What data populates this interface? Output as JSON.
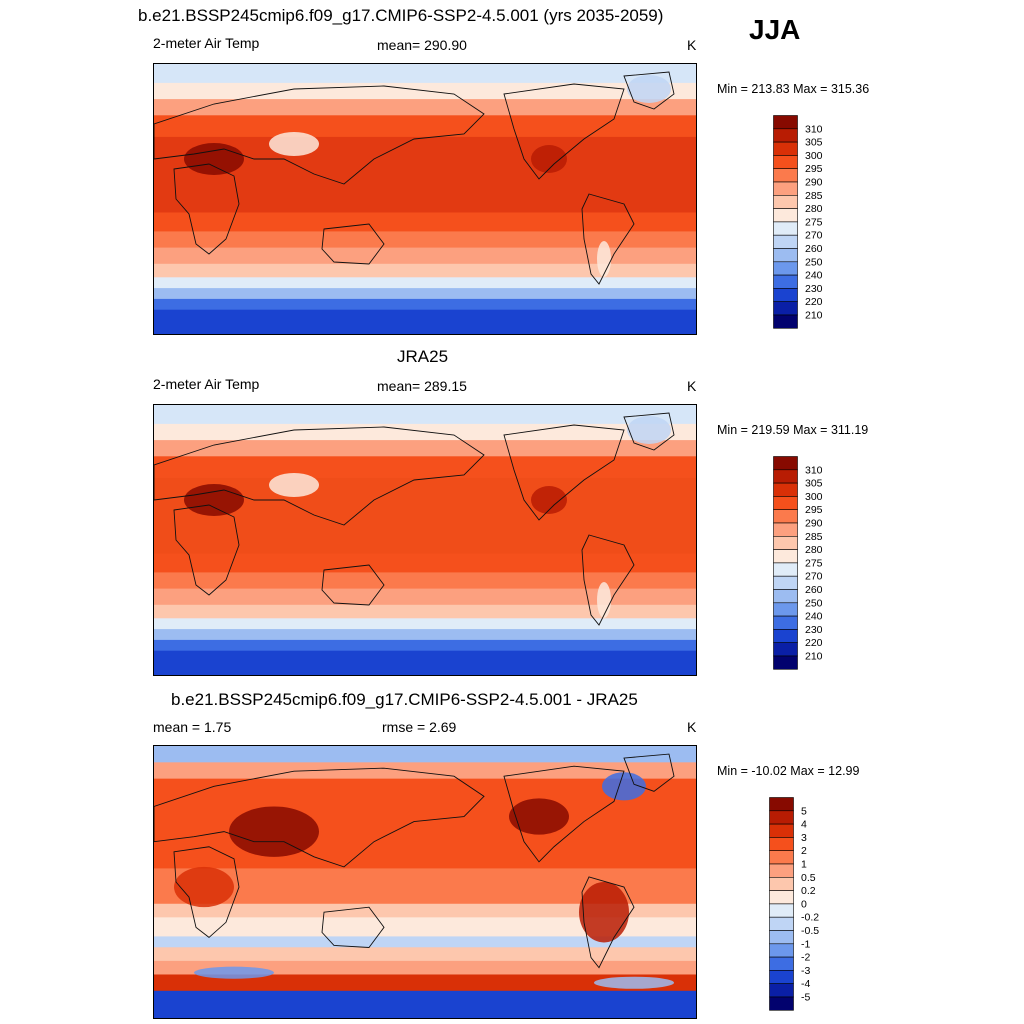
{
  "season": "JJA",
  "panels": [
    {
      "title": "b.e21.BSSP245cmip6.f09_g17.CMIP6-SSP2-4.5.001 (yrs 2035-2059)",
      "left": "2-meter Air Temp",
      "center": "mean= 290.90",
      "units": "K",
      "minmax": "Min = 213.83 Max = 315.36",
      "kind": "temp",
      "tropics_color": "#e23a12",
      "colorbar": {
        "labels": [
          "310",
          "305",
          "300",
          "295",
          "290",
          "285",
          "280",
          "275",
          "270",
          "260",
          "250",
          "240",
          "230",
          "220",
          "210"
        ],
        "colors": [
          "#870a00",
          "#b81c03",
          "#d93007",
          "#f5501c",
          "#fb7a4c",
          "#fca07f",
          "#fdc7ad",
          "#fde9dc",
          "#e0ecf8",
          "#bfd5f5",
          "#9cbcf1",
          "#6c98ec",
          "#3d6de3",
          "#1a43d0",
          "#0a1fa6",
          "#02026e"
        ]
      }
    },
    {
      "title": "JRA25",
      "left": "2-meter Air Temp",
      "center": "mean= 289.15",
      "units": "K",
      "minmax": "Min = 219.59 Max = 311.19",
      "kind": "temp",
      "tropics_color": "#f04d19",
      "colorbar": {
        "labels": [
          "310",
          "305",
          "300",
          "295",
          "290",
          "285",
          "280",
          "275",
          "270",
          "260",
          "250",
          "240",
          "230",
          "220",
          "210"
        ],
        "colors": [
          "#870a00",
          "#b81c03",
          "#d93007",
          "#f5501c",
          "#fb7a4c",
          "#fca07f",
          "#fdc7ad",
          "#fde9dc",
          "#e0ecf8",
          "#bfd5f5",
          "#9cbcf1",
          "#6c98ec",
          "#3d6de3",
          "#1a43d0",
          "#0a1fa6",
          "#02026e"
        ]
      }
    },
    {
      "title": "b.e21.BSSP245cmip6.f09_g17.CMIP6-SSP2-4.5.001 - JRA25",
      "left": "mean =   1.75",
      "center": "rmse =   2.69",
      "units": "K",
      "minmax": "Min = -10.02 Max =  12.99",
      "kind": "diff",
      "tropics_color": "#f46a3a",
      "colorbar": {
        "labels": [
          "5",
          "4",
          "3",
          "2",
          "1",
          "0.5",
          "0.2",
          "0",
          "-0.2",
          "-0.5",
          "-1",
          "-2",
          "-3",
          "-4",
          "-5"
        ],
        "colors": [
          "#870a00",
          "#b81c03",
          "#d93007",
          "#f5501c",
          "#fb7a4c",
          "#fca07f",
          "#fdc7ad",
          "#fde9dc",
          "#e0ecf8",
          "#bfd5f5",
          "#9cbcf1",
          "#6c98ec",
          "#3d6de3",
          "#1a43d0",
          "#0a1fa6",
          "#02026e"
        ]
      }
    }
  ]
}
